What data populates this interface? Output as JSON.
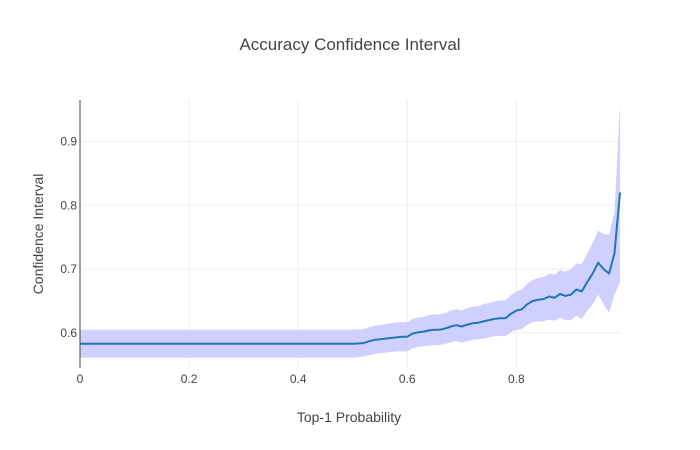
{
  "chart_data": {
    "type": "line",
    "title": "Accuracy Confidence Interval",
    "xlabel": "Top-1 Probability",
    "ylabel": "Confidence Interval",
    "xlim": [
      0,
      0.99
    ],
    "ylim": [
      0.545,
      0.965
    ],
    "x_ticks": [
      0,
      0.2,
      0.4,
      0.6,
      0.8
    ],
    "x_tick_labels": [
      "0",
      "0.2",
      "0.4",
      "0.6",
      "0.8"
    ],
    "y_ticks": [
      0.6,
      0.7,
      0.8,
      0.9
    ],
    "y_tick_labels": [
      "0.6",
      "0.7",
      "0.8",
      "0.9"
    ],
    "grid": true,
    "legend": "none",
    "colors": {
      "line": "#1f77b4",
      "band": "#c8c8ff",
      "grid": "#eeeeee",
      "axis": "#444444"
    },
    "series": [
      {
        "x": [
          0,
          0.05,
          0.1,
          0.15,
          0.2,
          0.25,
          0.3,
          0.35,
          0.4,
          0.45,
          0.5,
          0.52,
          0.53,
          0.54,
          0.55,
          0.56,
          0.57,
          0.58,
          0.59,
          0.6,
          0.61,
          0.62,
          0.63,
          0.64,
          0.65,
          0.66,
          0.67,
          0.68,
          0.69,
          0.7,
          0.71,
          0.72,
          0.73,
          0.74,
          0.75,
          0.76,
          0.77,
          0.78,
          0.79,
          0.8,
          0.81,
          0.82,
          0.83,
          0.84,
          0.85,
          0.86,
          0.87,
          0.88,
          0.89,
          0.9,
          0.91,
          0.92,
          0.93,
          0.94,
          0.95,
          0.96,
          0.97,
          0.98,
          0.99
        ],
        "y": [
          0.583,
          0.583,
          0.583,
          0.583,
          0.583,
          0.583,
          0.583,
          0.583,
          0.583,
          0.583,
          0.583,
          0.584,
          0.587,
          0.589,
          0.59,
          0.591,
          0.592,
          0.593,
          0.594,
          0.594,
          0.599,
          0.601,
          0.602,
          0.604,
          0.605,
          0.605,
          0.607,
          0.61,
          0.612,
          0.61,
          0.613,
          0.615,
          0.616,
          0.618,
          0.62,
          0.622,
          0.623,
          0.623,
          0.63,
          0.635,
          0.637,
          0.645,
          0.65,
          0.652,
          0.653,
          0.657,
          0.655,
          0.661,
          0.658,
          0.66,
          0.668,
          0.665,
          0.68,
          0.693,
          0.71,
          0.7,
          0.693,
          0.725,
          0.82
        ],
        "y_lower": [
          0.561,
          0.561,
          0.561,
          0.561,
          0.561,
          0.561,
          0.561,
          0.561,
          0.561,
          0.561,
          0.561,
          0.563,
          0.565,
          0.567,
          0.568,
          0.569,
          0.57,
          0.571,
          0.571,
          0.571,
          0.576,
          0.578,
          0.579,
          0.58,
          0.581,
          0.581,
          0.583,
          0.585,
          0.587,
          0.585,
          0.587,
          0.589,
          0.59,
          0.591,
          0.593,
          0.595,
          0.595,
          0.595,
          0.601,
          0.605,
          0.606,
          0.613,
          0.617,
          0.618,
          0.618,
          0.621,
          0.619,
          0.624,
          0.62,
          0.62,
          0.627,
          0.622,
          0.635,
          0.645,
          0.66,
          0.645,
          0.632,
          0.66,
          0.68
        ],
        "y_upper": [
          0.605,
          0.605,
          0.605,
          0.605,
          0.605,
          0.605,
          0.605,
          0.605,
          0.605,
          0.605,
          0.605,
          0.606,
          0.609,
          0.611,
          0.612,
          0.614,
          0.615,
          0.616,
          0.617,
          0.617,
          0.622,
          0.624,
          0.625,
          0.628,
          0.629,
          0.629,
          0.631,
          0.635,
          0.637,
          0.635,
          0.639,
          0.641,
          0.642,
          0.645,
          0.647,
          0.649,
          0.651,
          0.651,
          0.659,
          0.665,
          0.668,
          0.677,
          0.683,
          0.686,
          0.688,
          0.693,
          0.691,
          0.698,
          0.696,
          0.7,
          0.709,
          0.708,
          0.725,
          0.741,
          0.76,
          0.755,
          0.754,
          0.79,
          0.96
        ]
      }
    ]
  }
}
